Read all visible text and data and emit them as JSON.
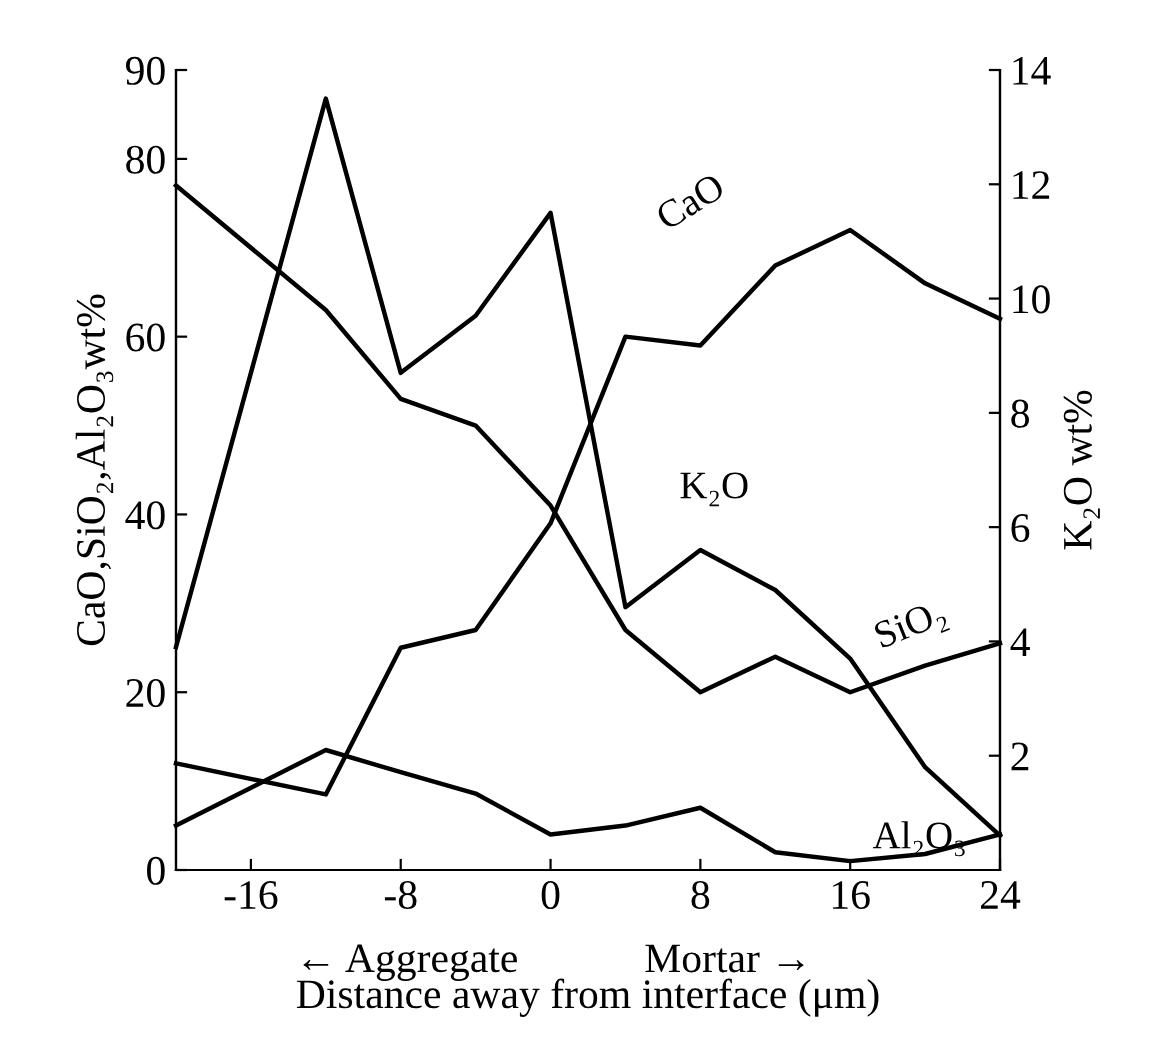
{
  "chart_data": {
    "type": "line",
    "xlabel": "Distance away from interface (μm)",
    "ylabel": "CaO,SiO₂,Al₂O₃wt%",
    "y2label": "K₂O wt%",
    "x": [
      -20,
      -12,
      -8,
      -4,
      0,
      4,
      8,
      12,
      16,
      20,
      24
    ],
    "series": [
      {
        "name": "CaO",
        "color": "#000000",
        "values": [
          12,
          8.5,
          25,
          27,
          39,
          60,
          59,
          68,
          72,
          66,
          62
        ]
      },
      {
        "name": "K₂O",
        "color": "#000000",
        "axis": "y2",
        "values": [
          3.9,
          13.5,
          8.7,
          9.7,
          11.5,
          4.6,
          5.6,
          4.9,
          3.7,
          1.8,
          0.6
        ]
      },
      {
        "name": "SiO₂",
        "color": "#000000",
        "values": [
          77,
          63,
          53,
          50,
          41,
          27,
          20,
          24,
          20,
          23,
          25.5
        ]
      },
      {
        "name": "Al₂O₃",
        "color": "#000000",
        "values": [
          5,
          13.5,
          11,
          8.6,
          4,
          5,
          7,
          2,
          1,
          1.8,
          4
        ]
      }
    ],
    "annotations": [
      "← Aggregate",
      "Mortar →"
    ],
    "xlim": [
      -20,
      24
    ],
    "xticks": [
      -16,
      -8,
      0,
      8,
      16,
      24
    ],
    "ylim": [
      0,
      90
    ],
    "yticks": [
      0,
      20,
      40,
      60,
      80,
      90
    ],
    "y2lim": [
      0,
      14
    ],
    "y2ticks": [
      2,
      4,
      6,
      8,
      10,
      12,
      14
    ],
    "grid": false,
    "legend": false,
    "marker": "none",
    "line_style": "solid"
  }
}
